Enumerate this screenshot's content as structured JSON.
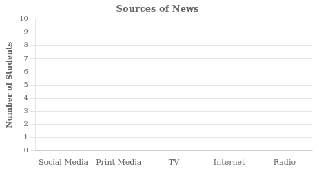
{
  "chart_data": {
    "type": "bar",
    "title": "Sources of News",
    "ylabel": "Number of Students",
    "categories": [
      "Social Media",
      "Print Media",
      "TV",
      "Internet",
      "Radio"
    ],
    "values": [
      0,
      0,
      0,
      0,
      0
    ],
    "ylim": [
      0,
      10
    ],
    "yticks": [
      0,
      1,
      2,
      3,
      4,
      5,
      6,
      7,
      8,
      9,
      10
    ],
    "grid": "y"
  }
}
